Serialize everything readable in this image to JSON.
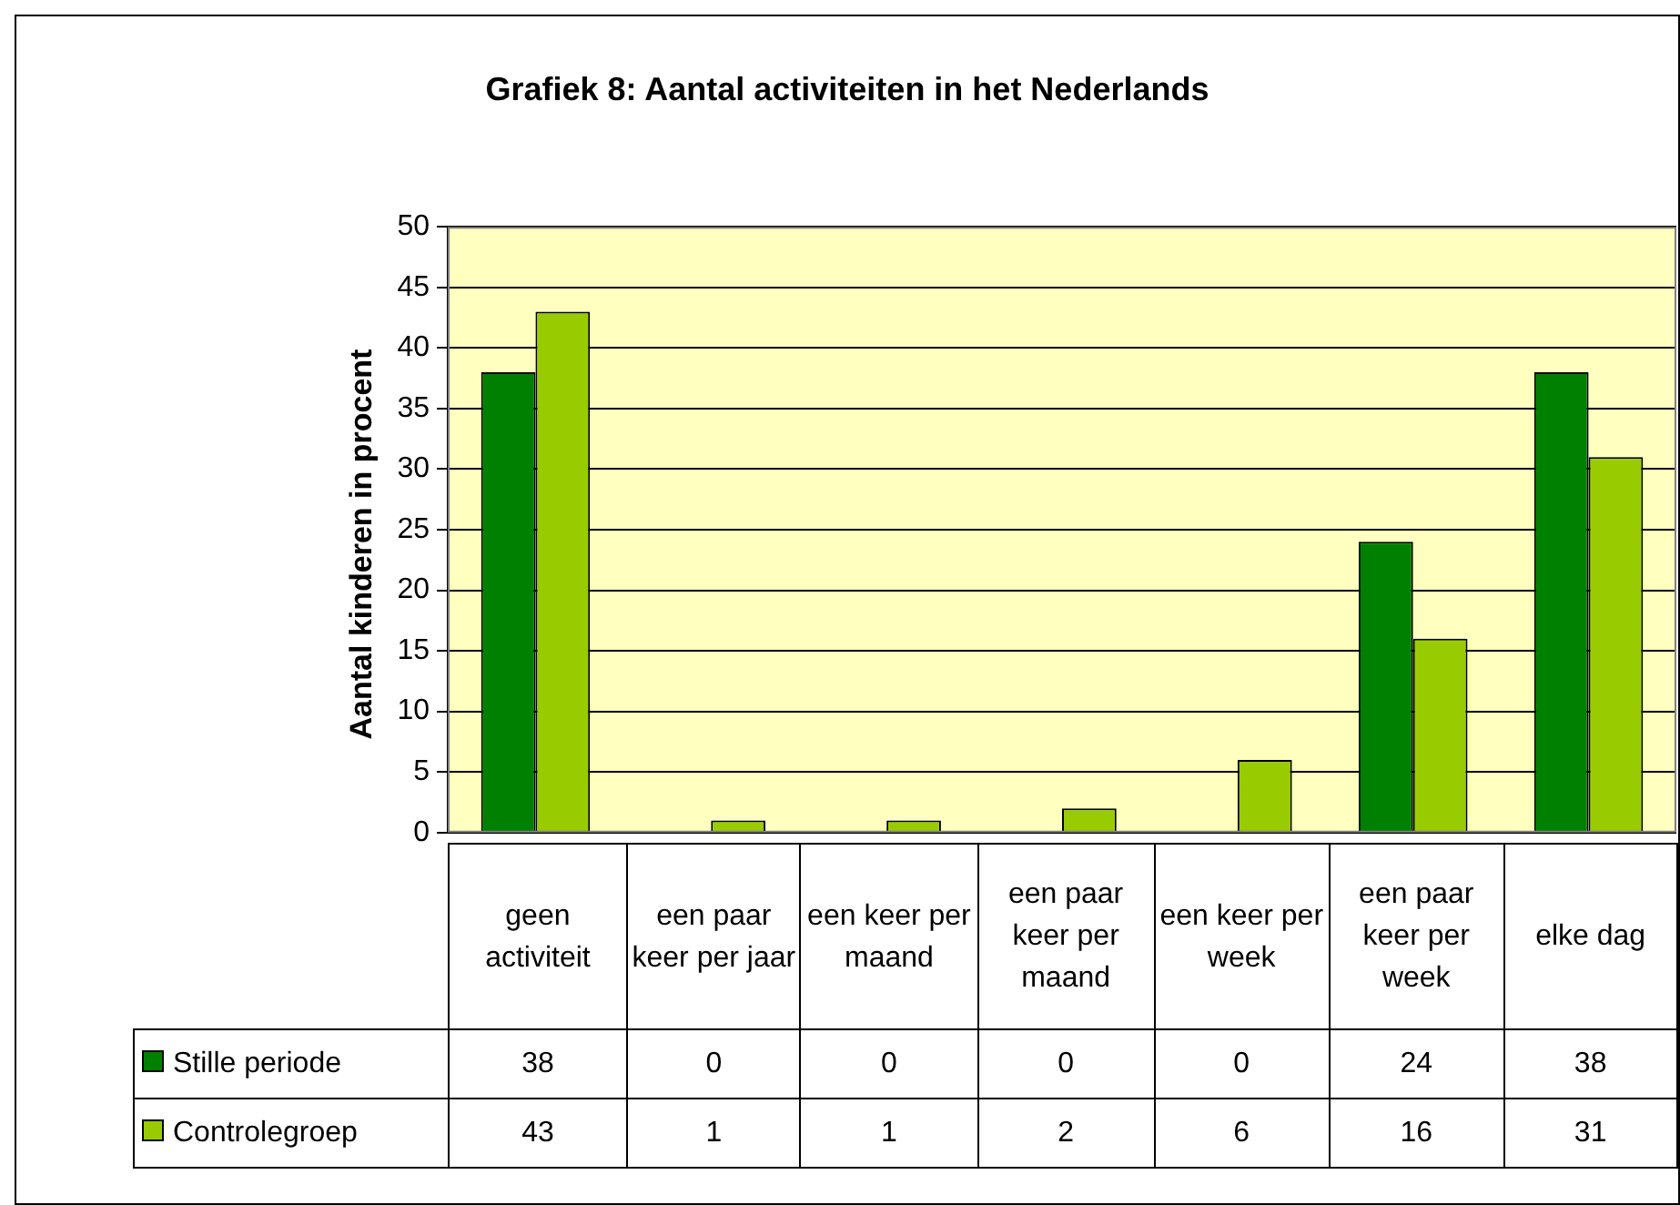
{
  "chart_data": {
    "type": "bar",
    "title": "Grafiek 8: Aantal activiteiten in het Nederlands",
    "ylabel": "Aantal kinderen in procent",
    "categories": [
      "geen activiteit",
      "een paar keer per jaar",
      "een keer per maand",
      "een paar keer per maand",
      "een keer per week",
      "een paar keer per week",
      "elke dag"
    ],
    "series": [
      {
        "name": "Stille periode",
        "color": "#008000",
        "values": [
          38,
          0,
          0,
          0,
          0,
          24,
          38
        ]
      },
      {
        "name": "Controlegroep",
        "color": "#99cc00",
        "values": [
          43,
          1,
          1,
          2,
          6,
          16,
          31
        ]
      }
    ],
    "ylim": [
      0,
      50
    ],
    "yticks": [
      0,
      5,
      10,
      15,
      20,
      25,
      30,
      35,
      40,
      45,
      50
    ],
    "grid": "y",
    "data_labels": true,
    "legend": "bottom"
  }
}
